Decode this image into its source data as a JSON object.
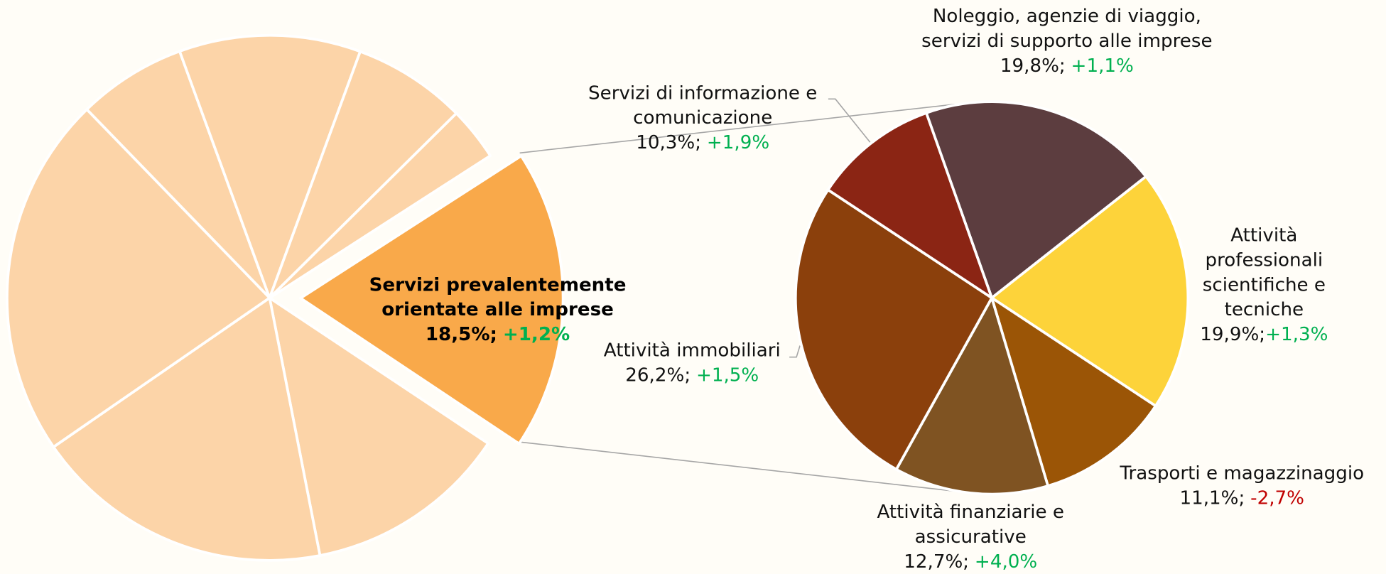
{
  "chart_data": [
    {
      "type": "pie",
      "categories": [
        "Servizi prevalentemente orientate alle imprese",
        null,
        null,
        null,
        null,
        null,
        null,
        null
      ],
      "values": [
        18.5,
        12.6,
        18.5,
        22.4,
        6.7,
        11.2,
        7.0,
        3.3
      ],
      "value_labels": [
        "18,5%;",
        null,
        null,
        null,
        null,
        null,
        null,
        null
      ],
      "growth": [
        1.2,
        null,
        null,
        null,
        null,
        null,
        null,
        null
      ],
      "growth_labels": [
        "+1,2%",
        null,
        null,
        null,
        null,
        null,
        null,
        null
      ],
      "colors": [
        "#f9a94a",
        "#fcd4a8",
        "#fcd4a8",
        "#fcd4a8",
        "#fcd4a8",
        "#fcd4a8",
        "#fcd4a8",
        "#fcd4a8"
      ],
      "exploded": 0,
      "positive_color": "#00b050",
      "negative_color": "#c00000"
    },
    {
      "type": "pie",
      "categories": [
        "Noleggio, agenzie di viaggio, servizi di supporto alle imprese",
        "Attività professionali scientifiche e tecniche",
        "Trasporti e magazzinaggio",
        "Attività finanziarie e assicurative",
        "Attività immobiliari",
        "Servizi di informazione e comunicazione"
      ],
      "values": [
        19.8,
        19.9,
        11.1,
        12.7,
        26.2,
        10.3
      ],
      "value_labels": [
        "19,8%;",
        "19,9%;",
        "11,1%;",
        "12,7%;",
        "26,2%;",
        "10,3%;"
      ],
      "growth": [
        1.1,
        1.3,
        -2.7,
        4.0,
        1.5,
        1.9
      ],
      "growth_labels": [
        "+1,1%",
        "+1,3%",
        "-2,7%",
        "+4,0%",
        "+1,5%",
        "+1,9%"
      ],
      "colors": [
        "#5c3d3f",
        "#fdd33a",
        "#9b5506",
        "#7f5322",
        "#8b400c",
        "#8b2514"
      ],
      "positive_color": "#00b050",
      "negative_color": "#c00000"
    }
  ]
}
